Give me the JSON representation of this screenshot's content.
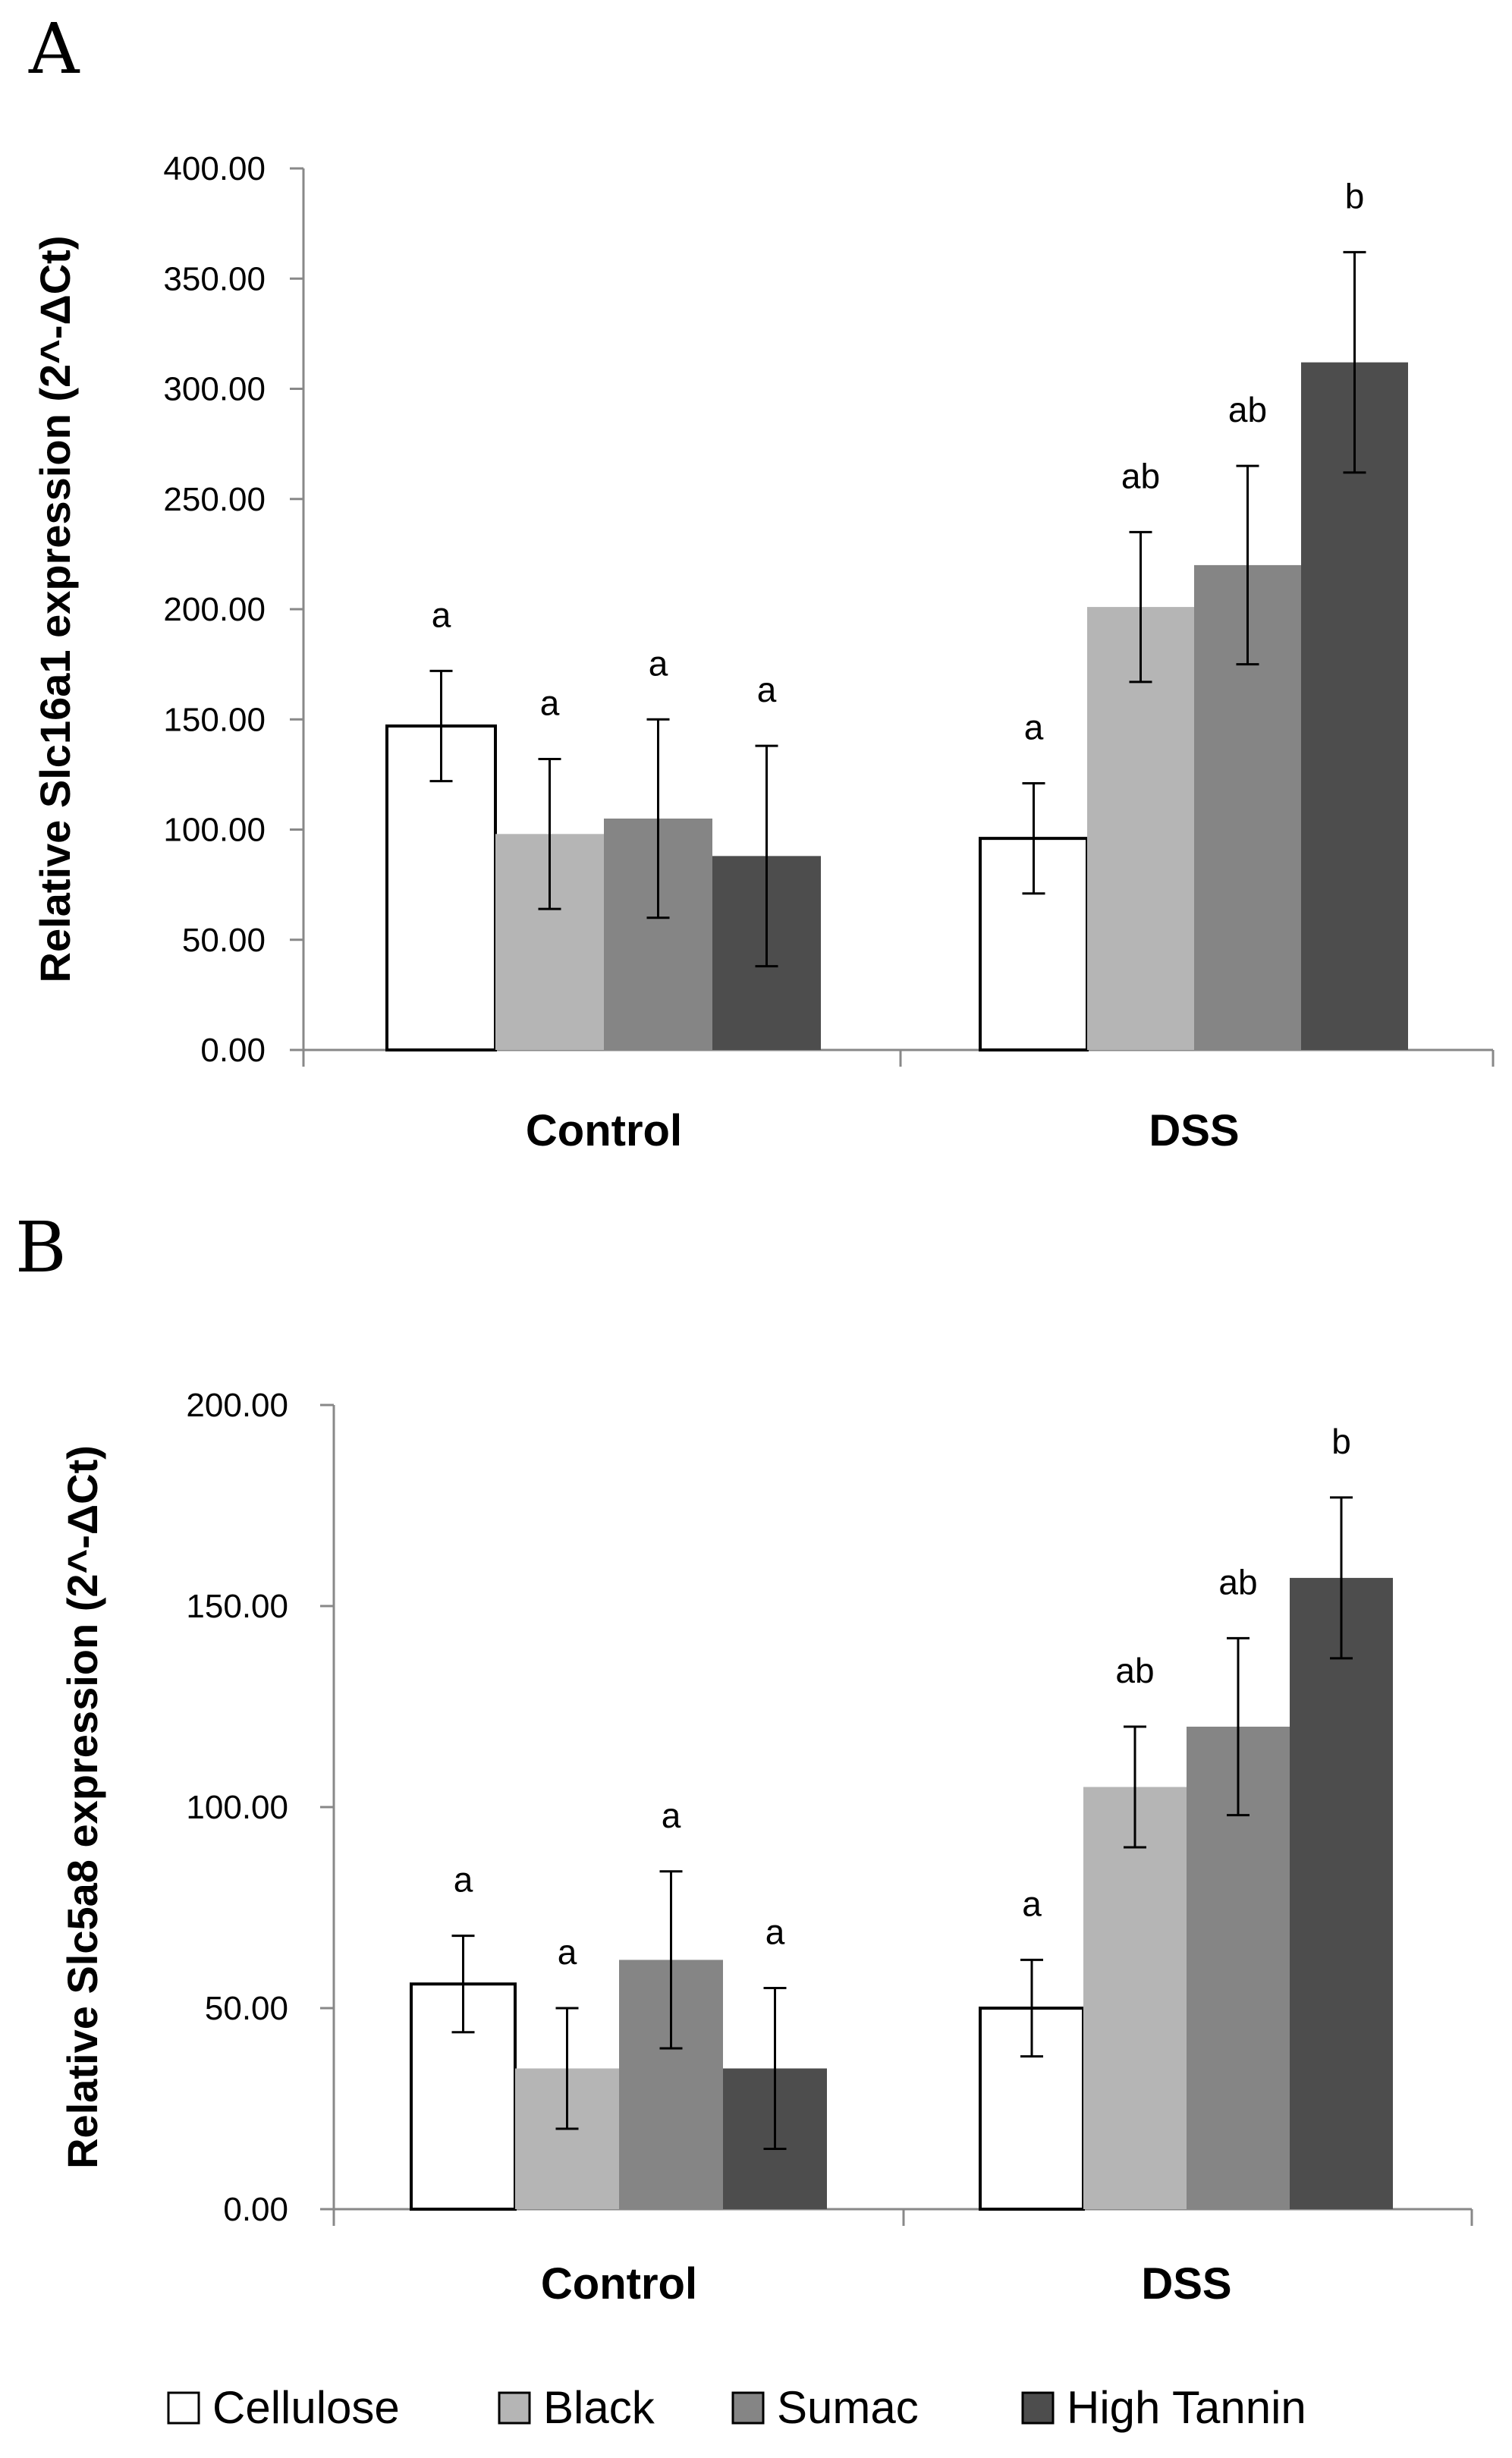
{
  "chart_data": [
    {
      "panel": "A",
      "type": "bar",
      "ylabel": "Relative Slc16a1 expression (2^-ΔCt)",
      "categories": [
        "Control",
        "DSS"
      ],
      "ylim": [
        0,
        400
      ],
      "yticks": [
        "0.00",
        "50.00",
        "100.00",
        "150.00",
        "200.00",
        "250.00",
        "300.00",
        "350.00",
        "400.00"
      ],
      "series": [
        {
          "name": "Cellulose",
          "values": [
            147,
            96
          ],
          "errors": [
            25,
            25
          ],
          "labels": [
            "a",
            "a"
          ]
        },
        {
          "name": "Black",
          "values": [
            98,
            201
          ],
          "errors": [
            34,
            34
          ],
          "labels": [
            "a",
            "ab"
          ]
        },
        {
          "name": "Sumac",
          "values": [
            105,
            220
          ],
          "errors": [
            45,
            45
          ],
          "labels": [
            "a",
            "ab"
          ]
        },
        {
          "name": "High Tannin",
          "values": [
            88,
            312
          ],
          "errors": [
            50,
            50
          ],
          "labels": [
            "a",
            "b"
          ]
        }
      ]
    },
    {
      "panel": "B",
      "type": "bar",
      "ylabel": "Relative Slc5a8 expression (2^-ΔCt)",
      "categories": [
        "Control",
        "DSS"
      ],
      "ylim": [
        0,
        200
      ],
      "yticks": [
        "0.00",
        "50.00",
        "100.00",
        "150.00",
        "200.00"
      ],
      "series": [
        {
          "name": "Cellulose",
          "values": [
            56,
            50
          ],
          "errors": [
            12,
            12
          ],
          "labels": [
            "a",
            "a"
          ]
        },
        {
          "name": "Black",
          "values": [
            35,
            105
          ],
          "errors": [
            15,
            15
          ],
          "labels": [
            "a",
            "ab"
          ]
        },
        {
          "name": "Sumac",
          "values": [
            62,
            120
          ],
          "errors": [
            22,
            22
          ],
          "labels": [
            "a",
            "ab"
          ]
        },
        {
          "name": "High Tannin",
          "values": [
            35,
            157
          ],
          "errors": [
            20,
            20
          ],
          "labels": [
            "a",
            "b"
          ]
        }
      ]
    }
  ],
  "legend": {
    "position": "bottom",
    "items": [
      {
        "label": "Cellulose",
        "color": "#ffffff"
      },
      {
        "label": "Black",
        "color": "#b5b5b5"
      },
      {
        "label": "Sumac",
        "color": "#858585"
      },
      {
        "label": "High Tannin",
        "color": "#4d4d4d"
      }
    ]
  },
  "colors": {
    "Cellulose": "#ffffff",
    "Black": "#b5b5b5",
    "Sumac": "#858585",
    "High Tannin": "#4d4d4d"
  }
}
